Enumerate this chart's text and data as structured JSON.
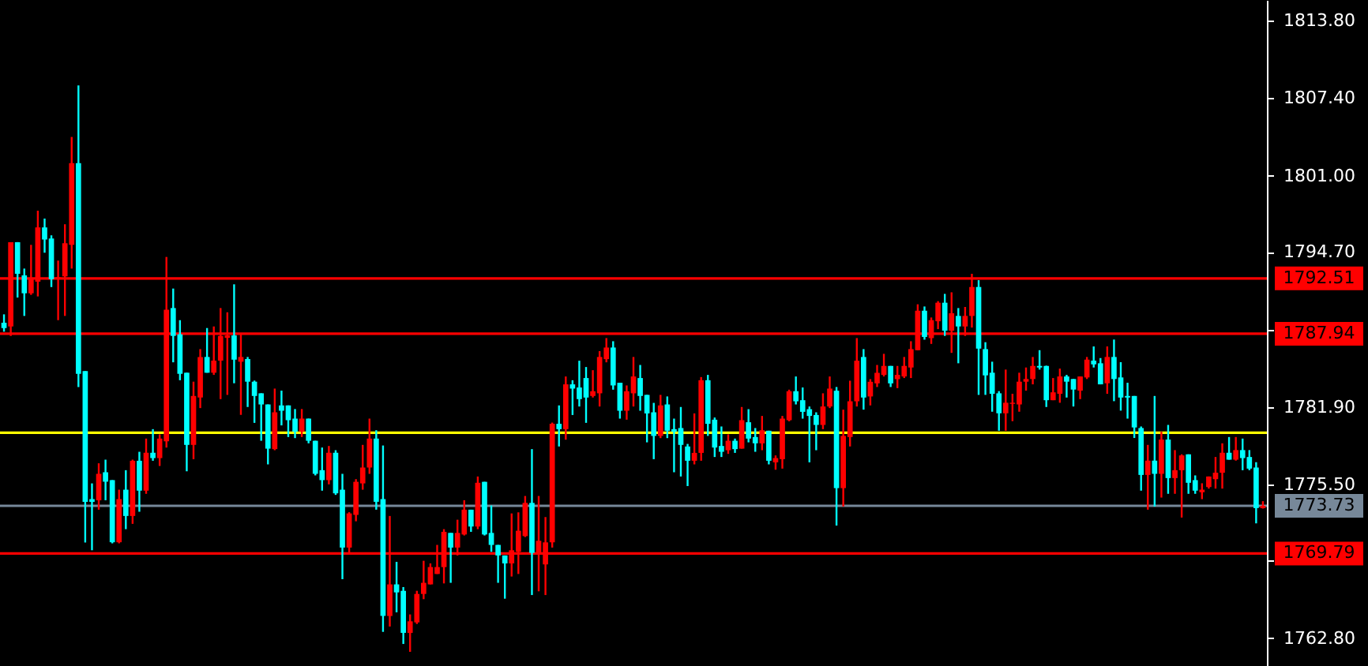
{
  "chart_data": {
    "type": "candlestick",
    "categories": [
      null,
      null,
      null,
      null,
      null,
      null,
      null,
      null,
      null,
      null,
      null,
      null,
      null,
      null,
      null,
      null,
      null,
      null,
      null,
      null,
      null,
      null,
      null,
      null,
      null,
      null,
      null,
      null,
      null,
      null,
      null,
      null,
      null,
      null,
      null,
      null,
      null,
      null,
      null,
      null,
      null,
      null,
      null,
      null,
      null,
      null,
      null,
      null,
      null,
      null,
      null,
      null,
      null,
      null,
      null,
      null,
      null,
      null,
      null,
      null,
      null,
      null,
      null,
      null,
      null,
      null,
      null,
      null,
      null,
      null,
      null,
      null,
      null,
      null,
      null,
      null,
      null,
      null,
      null,
      null,
      null,
      null,
      null,
      null,
      null,
      null,
      null,
      null,
      null,
      null,
      null,
      null,
      null,
      null,
      null,
      null,
      null,
      null,
      null,
      null,
      null,
      null,
      null,
      null,
      null,
      null,
      null,
      null,
      null,
      null,
      null,
      null,
      null,
      null,
      null,
      null,
      null,
      null,
      null,
      null,
      null,
      null,
      null,
      null,
      null,
      null,
      null,
      null,
      null,
      null,
      null,
      null,
      null,
      null,
      null,
      null,
      null,
      null,
      null,
      null,
      null,
      null,
      null,
      null,
      null,
      null,
      null,
      null,
      null,
      null,
      null,
      null,
      null,
      null,
      null,
      null,
      null,
      null,
      null,
      null,
      null,
      null,
      null,
      null,
      null,
      null,
      null,
      null,
      null,
      null,
      null,
      null,
      null,
      null,
      null,
      null,
      null,
      null,
      null,
      null,
      null,
      null,
      null,
      null,
      null,
      null,
      null
    ],
    "ohlc": [
      [
        1788.85,
        1789.54,
        1788.11,
        1788.41
      ],
      [
        1788.54,
        1795.5,
        1787.76,
        1795.5
      ],
      [
        1795.5,
        1795.5,
        1790.93,
        1792.89
      ],
      [
        1792.76,
        1793.32,
        1789.41,
        1791.28
      ],
      [
        1791.28,
        1795.28,
        1791.15,
        1792.45
      ],
      [
        1792.24,
        1798.1,
        1791.02,
        1796.72
      ],
      [
        1796.72,
        1797.45,
        1794.63,
        1795.72
      ],
      [
        1795.8,
        1796.06,
        1791.8,
        1792.45
      ],
      [
        1792.5,
        1793.98,
        1789.06,
        1792.6
      ],
      [
        1792.67,
        1796.98,
        1789.41,
        1795.41
      ],
      [
        1795.28,
        1804.19,
        1793.32,
        1802.02
      ],
      [
        1802.02,
        1808.45,
        1783.54,
        1784.63
      ],
      [
        1784.85,
        1784.85,
        1770.7,
        1774.06
      ],
      [
        1774.28,
        1775.58,
        1770.06,
        1774.06
      ],
      [
        1774.19,
        1777.24,
        1773.41,
        1776.37
      ],
      [
        1776.5,
        1777.54,
        1774.19,
        1775.72
      ],
      [
        1775.85,
        1775.85,
        1770.63,
        1770.72
      ],
      [
        1770.72,
        1775.06,
        1770.63,
        1774.28
      ],
      [
        1775.06,
        1776.67,
        1771.8,
        1772.89
      ],
      [
        1772.89,
        1777.54,
        1772.24,
        1777.45
      ],
      [
        1777.45,
        1778.19,
        1773.24,
        1774.98
      ],
      [
        1774.98,
        1779.28,
        1774.72,
        1778.11
      ],
      [
        1778.11,
        1780.06,
        1777.45,
        1777.67
      ],
      [
        1777.67,
        1779.63,
        1777.02,
        1779.28
      ],
      [
        1779.06,
        1794.28,
        1778.54,
        1789.93
      ],
      [
        1790.06,
        1791.67,
        1785.58,
        1787.76
      ],
      [
        1787.89,
        1789.06,
        1784.1,
        1784.63
      ],
      [
        1784.72,
        1784.72,
        1776.58,
        1778.76
      ],
      [
        1778.76,
        1783.98,
        1777.58,
        1782.8
      ],
      [
        1782.67,
        1786.67,
        1781.8,
        1786.02
      ],
      [
        1786.02,
        1788.41,
        1784.72,
        1784.72
      ],
      [
        1784.72,
        1788.54,
        1784.54,
        1785.72
      ],
      [
        1785.72,
        1790.06,
        1782.54,
        1787.76
      ],
      [
        1787.6,
        1789.71,
        1782.89,
        1787.8
      ],
      [
        1787.8,
        1792.02,
        1783.85,
        1785.8
      ],
      [
        1785.63,
        1787.89,
        1781.24,
        1786.02
      ],
      [
        1785.85,
        1786.02,
        1781.89,
        1783.98
      ],
      [
        1783.98,
        1784.07,
        1780.58,
        1782.8
      ],
      [
        1783.02,
        1783.02,
        1779.1,
        1782.1
      ],
      [
        1782.1,
        1782.1,
        1777.15,
        1778.45
      ],
      [
        1778.41,
        1783.41,
        1778.32,
        1781.45
      ],
      [
        1782.02,
        1783.24,
        1780.37,
        1781.58
      ],
      [
        1782.02,
        1782.02,
        1779.41,
        1780.8
      ],
      [
        1780.93,
        1781.72,
        1779.32,
        1779.85
      ],
      [
        1779.85,
        1781.72,
        1779.41,
        1780.93
      ],
      [
        1780.93,
        1780.93,
        1778.89,
        1779.1
      ],
      [
        1779.1,
        1779.1,
        1776.24,
        1776.37
      ],
      [
        1776.67,
        1778.54,
        1774.98,
        1775.85
      ],
      [
        1775.85,
        1778.67,
        1775.5,
        1778.11
      ],
      [
        1778.11,
        1778.32,
        1774.63,
        1774.76
      ],
      [
        1775.06,
        1776.37,
        1767.67,
        1770.28
      ],
      [
        1770.28,
        1773.2,
        1769.84,
        1773.1
      ],
      [
        1772.98,
        1775.93,
        1772.45,
        1775.71
      ],
      [
        1775.58,
        1778.76,
        1775.06,
        1776.89
      ],
      [
        1776.89,
        1780.93,
        1776.37,
        1779.28
      ],
      [
        1779.28,
        1779.97,
        1773.41,
        1774.06
      ],
      [
        1774.28,
        1778.71,
        1763.32,
        1764.63
      ],
      [
        1764.63,
        1772.89,
        1763.76,
        1767.24
      ],
      [
        1767.24,
        1769.1,
        1764.93,
        1766.58
      ],
      [
        1766.71,
        1767.02,
        1762.32,
        1763.23
      ],
      [
        1763.23,
        1764.76,
        1761.67,
        1764.19
      ],
      [
        1764.1,
        1766.71,
        1763.97,
        1766.45
      ],
      [
        1766.45,
        1769.19,
        1766.02,
        1767.37
      ],
      [
        1767.24,
        1768.97,
        1767.24,
        1768.67
      ],
      [
        1768.1,
        1770.5,
        1768.1,
        1768.67
      ],
      [
        1768.67,
        1771.8,
        1767.32,
        1771.58
      ],
      [
        1771.49,
        1771.49,
        1767.37,
        1770.28
      ],
      [
        1770.28,
        1772.58,
        1769.63,
        1771.49
      ],
      [
        1771.36,
        1774.19,
        1771.28,
        1773.41
      ],
      [
        1773.41,
        1773.41,
        1771.58,
        1772.02
      ],
      [
        1772.02,
        1776.15,
        1771.8,
        1775.63
      ],
      [
        1775.71,
        1775.71,
        1771.28,
        1771.36
      ],
      [
        1771.49,
        1773.76,
        1769.93,
        1770.5
      ],
      [
        1770.5,
        1770.5,
        1767.37,
        1769.63
      ],
      [
        1769.63,
        1769.63,
        1766.06,
        1768.97
      ],
      [
        1768.97,
        1773.1,
        1767.89,
        1770.06
      ],
      [
        1769.93,
        1773.19,
        1768.1,
        1771.67
      ],
      [
        1771.23,
        1774.54,
        1771.15,
        1773.97
      ],
      [
        1773.97,
        1778.41,
        1766.36,
        1769.84
      ],
      [
        1769.84,
        1774.54,
        1766.67,
        1770.84
      ],
      [
        1768.89,
        1772.8,
        1766.36,
        1770.71
      ],
      [
        1770.71,
        1780.6,
        1770.28,
        1780.5
      ],
      [
        1780.5,
        1782.02,
        1778.63,
        1780.06
      ],
      [
        1780.06,
        1784.41,
        1779.19,
        1783.76
      ],
      [
        1783.76,
        1784.1,
        1781.23,
        1783.41
      ],
      [
        1783.5,
        1785.71,
        1781.93,
        1782.54
      ],
      [
        1784.28,
        1785.19,
        1780.58,
        1782.67
      ],
      [
        1782.8,
        1784.93,
        1782.67,
        1783.19
      ],
      [
        1783.02,
        1786.5,
        1781.93,
        1786.02
      ],
      [
        1785.84,
        1787.58,
        1785.58,
        1786.8
      ],
      [
        1786.8,
        1787.32,
        1783.32,
        1783.67
      ],
      [
        1783.89,
        1783.89,
        1780.93,
        1781.58
      ],
      [
        1781.58,
        1783.67,
        1780.84,
        1783.19
      ],
      [
        1783.02,
        1786.02,
        1781.93,
        1784.41
      ],
      [
        1784.28,
        1785.36,
        1781.58,
        1782.8
      ],
      [
        1782.89,
        1782.89,
        1778.97,
        1781.36
      ],
      [
        1781.45,
        1782.23,
        1777.58,
        1779.5
      ],
      [
        1779.5,
        1782.89,
        1779.32,
        1782.02
      ],
      [
        1782.1,
        1782.76,
        1779.32,
        1779.93
      ],
      [
        1780.06,
        1780.93,
        1776.5,
        1779.84
      ],
      [
        1780.15,
        1781.89,
        1776.15,
        1778.76
      ],
      [
        1778.63,
        1778.84,
        1775.36,
        1777.45
      ],
      [
        1777.45,
        1781.36,
        1777.15,
        1778.1
      ],
      [
        1778.1,
        1784.36,
        1777.45,
        1784.1
      ],
      [
        1784.1,
        1784.54,
        1779.5,
        1780.5
      ],
      [
        1780.84,
        1781.02,
        1777.76,
        1778.54
      ],
      [
        1778.67,
        1780.28,
        1777.76,
        1778.19
      ],
      [
        1778.32,
        1779.63,
        1778.02,
        1779.1
      ],
      [
        1779.1,
        1779.28,
        1778.1,
        1778.41
      ],
      [
        1778.45,
        1781.89,
        1778.45,
        1780.8
      ],
      [
        1780.63,
        1781.71,
        1778.97,
        1779.28
      ],
      [
        1779.41,
        1780.15,
        1778.19,
        1778.89
      ],
      [
        1778.89,
        1781.15,
        1778.32,
        1779.97
      ],
      [
        1779.93,
        1779.93,
        1777.15,
        1777.45
      ],
      [
        1777.32,
        1777.89,
        1776.71,
        1777.67
      ],
      [
        1777.58,
        1781.15,
        1776.8,
        1780.93
      ],
      [
        1780.8,
        1783.32,
        1780.71,
        1783.19
      ],
      [
        1783.19,
        1784.41,
        1782.1,
        1782.36
      ],
      [
        1782.45,
        1783.5,
        1780.93,
        1781.49
      ],
      [
        1781.71,
        1781.93,
        1777.32,
        1781.15
      ],
      [
        1781.23,
        1781.45,
        1778.32,
        1780.41
      ],
      [
        1780.41,
        1783.02,
        1780.06,
        1781.93
      ],
      [
        1781.93,
        1784.41,
        1781.8,
        1783.41
      ],
      [
        1783.23,
        1783.54,
        1772.1,
        1775.19
      ],
      [
        1775.19,
        1781.67,
        1773.67,
        1779.5
      ],
      [
        1779.41,
        1784.06,
        1778.63,
        1782.36
      ],
      [
        1782.36,
        1787.58,
        1781.93,
        1785.71
      ],
      [
        1786.02,
        1786.67,
        1781.67,
        1782.67
      ],
      [
        1782.76,
        1784.19,
        1782.02,
        1783.97
      ],
      [
        1783.84,
        1785.36,
        1783.54,
        1784.71
      ],
      [
        1784.54,
        1786.28,
        1784.41,
        1785.28
      ],
      [
        1785.28,
        1785.28,
        1783.54,
        1783.84
      ],
      [
        1784.19,
        1785.28,
        1783.45,
        1784.54
      ],
      [
        1784.41,
        1786.02,
        1784.28,
        1785.28
      ],
      [
        1785.15,
        1787.32,
        1784.28,
        1786.67
      ],
      [
        1786.58,
        1790.37,
        1786.58,
        1789.84
      ],
      [
        1789.84,
        1790.19,
        1787.45,
        1787.67
      ],
      [
        1787.58,
        1789.28,
        1787.1,
        1789.06
      ],
      [
        1788.97,
        1790.63,
        1788.32,
        1790.5
      ],
      [
        1790.5,
        1791.23,
        1787.76,
        1788.19
      ],
      [
        1788.19,
        1791.36,
        1786.36,
        1789.63
      ],
      [
        1789.41,
        1790.06,
        1785.5,
        1788.54
      ],
      [
        1788.54,
        1790.15,
        1787.76,
        1789.41
      ],
      [
        1789.41,
        1792.89,
        1788.45,
        1791.8
      ],
      [
        1791.8,
        1792.36,
        1782.89,
        1786.71
      ],
      [
        1786.67,
        1787.24,
        1782.89,
        1784.5
      ],
      [
        1784.72,
        1785.63,
        1781.5,
        1782.98
      ],
      [
        1783.02,
        1783.2,
        1779.93,
        1781.37
      ],
      [
        1781.37,
        1784.98,
        1779.93,
        1782.24
      ],
      [
        1782.15,
        1782.98,
        1780.72,
        1782.24
      ],
      [
        1782.1,
        1784.72,
        1781.5,
        1783.98
      ],
      [
        1783.98,
        1785.15,
        1783.24,
        1784.2
      ],
      [
        1784.2,
        1786.02,
        1783.76,
        1785.28
      ],
      [
        1785.28,
        1786.58,
        1784.98,
        1785.15
      ],
      [
        1785.28,
        1785.3,
        1781.89,
        1782.45
      ],
      [
        1782.45,
        1784.28,
        1782.45,
        1783.1
      ],
      [
        1782.98,
        1785.06,
        1782.24,
        1784.41
      ],
      [
        1784.41,
        1784.54,
        1782.67,
        1783.98
      ],
      [
        1784.2,
        1784.2,
        1781.93,
        1783.33
      ],
      [
        1783.24,
        1784.41,
        1782.54,
        1784.41
      ],
      [
        1784.33,
        1786.02,
        1784.2,
        1785.8
      ],
      [
        1785.72,
        1786.89,
        1785.15,
        1785.41
      ],
      [
        1785.5,
        1785.93,
        1783.76,
        1783.76
      ],
      [
        1783.85,
        1786.89,
        1782.98,
        1786.02
      ],
      [
        1786.02,
        1787.46,
        1782.37,
        1784.2
      ],
      [
        1784.33,
        1785.59,
        1781.59,
        1782.67
      ],
      [
        1782.8,
        1783.89,
        1780.93,
        1782.67
      ],
      [
        1782.8,
        1782.8,
        1779.33,
        1780.2
      ],
      [
        1780.15,
        1780.28,
        1774.98,
        1776.28
      ],
      [
        1776.28,
        1778.76,
        1773.41,
        1777.46
      ],
      [
        1777.46,
        1782.8,
        1773.67,
        1776.37
      ],
      [
        1776.37,
        1779.85,
        1774.41,
        1779.2
      ],
      [
        1779.2,
        1780.41,
        1774.72,
        1776.02
      ],
      [
        1776.02,
        1778.33,
        1774.72,
        1776.67
      ],
      [
        1776.67,
        1777.98,
        1772.76,
        1777.89
      ],
      [
        1777.98,
        1777.98,
        1774.72,
        1775.63
      ],
      [
        1775.85,
        1776.24,
        1774.72,
        1774.98
      ],
      [
        1774.85,
        1775.59,
        1774.28,
        1775.06
      ],
      [
        1775.28,
        1776.15,
        1775.15,
        1776.15
      ],
      [
        1775.93,
        1777.76,
        1775.15,
        1776.46
      ],
      [
        1776.46,
        1778.89,
        1775.15,
        1778.11
      ],
      [
        1778.11,
        1779.41,
        1777.54,
        1777.54
      ],
      [
        1777.54,
        1779.41,
        1777.46,
        1778.33
      ],
      [
        1778.33,
        1779.28,
        1776.67,
        1777.67
      ],
      [
        1777.76,
        1778.33,
        1776.67,
        1776.8
      ],
      [
        1776.89,
        1777.33,
        1772.28,
        1773.54
      ],
      [
        1773.54,
        1774.11,
        1773.5,
        1773.73
      ]
    ],
    "colors": [
      "#00ffff",
      "#ff0000",
      "#00ffff",
      "#00ffff",
      "#ff0000",
      "#ff0000",
      "#00ffff",
      "#00ffff",
      "#ff0000",
      "#ff0000",
      "#ff0000",
      "#00ffff",
      "#00ffff",
      "#00ffff",
      "#ff0000",
      "#00ffff",
      "#00ffff",
      "#ff0000",
      "#00ffff",
      "#ff0000",
      "#00ffff",
      "#ff0000",
      "#00ffff",
      "#ff0000",
      "#ff0000",
      "#00ffff",
      "#00ffff",
      "#00ffff",
      "#ff0000",
      "#ff0000",
      "#00ffff",
      "#ff0000",
      "#ff0000",
      "#ff0000",
      "#00ffff",
      "#ff0000",
      "#00ffff",
      "#00ffff",
      "#00ffff",
      "#00ffff",
      "#ff0000",
      "#00ffff",
      "#00ffff",
      "#00ffff",
      "#ff0000",
      "#00ffff",
      "#00ffff",
      "#00ffff",
      "#ff0000",
      "#00ffff",
      "#00ffff",
      "#ff0000",
      "#ff0000",
      "#ff0000",
      "#ff0000",
      "#00ffff",
      "#00ffff",
      "#ff0000",
      "#00ffff",
      "#00ffff",
      "#ff0000",
      "#ff0000",
      "#ff0000",
      "#ff0000",
      "#ff0000",
      "#ff0000",
      "#00ffff",
      "#ff0000",
      "#ff0000",
      "#00ffff",
      "#ff0000",
      "#00ffff",
      "#00ffff",
      "#00ffff",
      "#00ffff",
      "#ff0000",
      "#ff0000",
      "#ff0000",
      "#00ffff",
      "#ff0000",
      "#ff0000",
      "#ff0000",
      "#00ffff",
      "#ff0000",
      "#00ffff",
      "#00ffff",
      "#00ffff",
      "#ff0000",
      "#ff0000",
      "#ff0000",
      "#00ffff",
      "#00ffff",
      "#ff0000",
      "#ff0000",
      "#00ffff",
      "#00ffff",
      "#00ffff",
      "#ff0000",
      "#00ffff",
      "#00ffff",
      "#00ffff",
      "#00ffff",
      "#ff0000",
      "#ff0000",
      "#00ffff",
      "#00ffff",
      "#00ffff",
      "#ff0000",
      "#00ffff",
      "#ff0000",
      "#00ffff",
      "#00ffff",
      "#ff0000",
      "#00ffff",
      "#ff0000",
      "#ff0000",
      "#ff0000",
      "#00ffff",
      "#00ffff",
      "#00ffff",
      "#00ffff",
      "#ff0000",
      "#ff0000",
      "#00ffff",
      "#ff0000",
      "#ff0000",
      "#ff0000",
      "#00ffff",
      "#ff0000",
      "#ff0000",
      "#ff0000",
      "#00ffff",
      "#ff0000",
      "#ff0000",
      "#ff0000",
      "#ff0000",
      "#00ffff",
      "#ff0000",
      "#ff0000",
      "#00ffff",
      "#ff0000",
      "#00ffff",
      "#ff0000",
      "#ff0000",
      "#00ffff",
      "#00ffff",
      "#00ffff",
      "#00ffff",
      "#ff0000",
      "#ff0000",
      "#ff0000",
      "#ff0000",
      "#ff0000",
      "#00ffff",
      "#00ffff",
      "#ff0000",
      "#ff0000",
      "#00ffff",
      "#00ffff",
      "#ff0000",
      "#ff0000",
      "#00ffff",
      "#00ffff",
      "#ff0000",
      "#00ffff",
      "#00ffff",
      "#00ffff",
      "#00ffff",
      "#00ffff",
      "#ff0000",
      "#00ffff",
      "#ff0000",
      "#00ffff",
      "#ff0000",
      "#ff0000",
      "#00ffff",
      "#00ffff",
      "#ff0000",
      "#ff0000",
      "#ff0000",
      "#ff0000",
      "#00ffff",
      "#ff0000",
      "#00ffff",
      "#00ffff",
      "#00ffff",
      "#ff0000"
    ],
    "ylim": [
      1760.5,
      1815.5
    ],
    "yticks": [
      {
        "value": 1762.8,
        "label": "1762.80"
      },
      {
        "value": 1769.2,
        "label": null
      },
      {
        "value": 1775.5,
        "label": "1775.50"
      },
      {
        "value": 1781.9,
        "label": "1781.90"
      },
      {
        "value": 1788.3,
        "label": null
      },
      {
        "value": 1794.7,
        "label": "1794.70"
      },
      {
        "value": 1801.0,
        "label": "1801.00"
      },
      {
        "value": 1807.4,
        "label": "1807.40"
      },
      {
        "value": 1813.8,
        "label": "1813.80"
      }
    ],
    "ref_lines": [
      {
        "axis": "y",
        "value": 1792.51,
        "label": "1792.51",
        "color": "#ff0000"
      },
      {
        "axis": "y",
        "value": 1787.94,
        "label": "1787.94",
        "color": "#ff0000"
      },
      {
        "axis": "y",
        "value": 1769.79,
        "label": "1769.79",
        "color": "#ff0000"
      },
      {
        "axis": "y",
        "value": 1773.73,
        "label": "1773.73",
        "color": "#778899"
      },
      {
        "axis": "y",
        "value": 1779.76,
        "label": null,
        "color": "#ffff00"
      }
    ],
    "grid": false
  }
}
